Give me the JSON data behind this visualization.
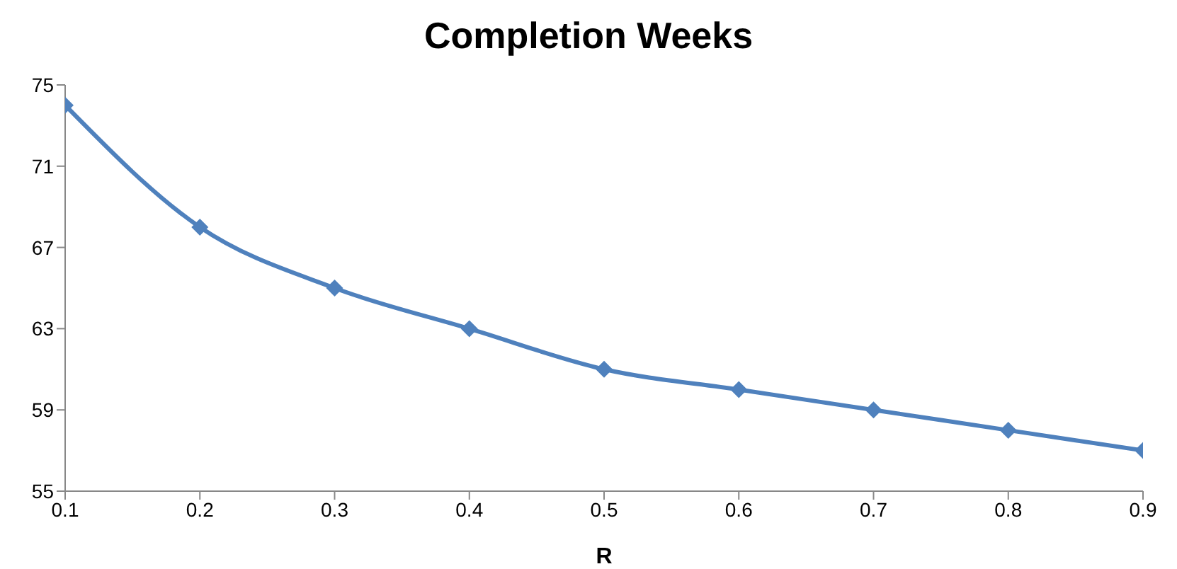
{
  "chart_data": {
    "type": "line",
    "title": "Completion Weeks",
    "xlabel": "R",
    "x": [
      0.1,
      0.2,
      0.3,
      0.4,
      0.5,
      0.6,
      0.7,
      0.8,
      0.9
    ],
    "series": [
      {
        "color": "#4f81bd",
        "values": [
          74,
          68,
          65,
          63,
          61,
          60,
          59,
          58,
          57
        ]
      }
    ],
    "xlim": [
      0.1,
      0.9
    ],
    "xticks": [
      0.1,
      0.2,
      0.3,
      0.4,
      0.5,
      0.6,
      0.7,
      0.8,
      0.9
    ],
    "ylim": [
      55,
      75
    ],
    "yticks": [
      55,
      59,
      63,
      67,
      71,
      75
    ],
    "grid": false,
    "legend": false,
    "marker": "diamond",
    "line_style": "solid"
  }
}
